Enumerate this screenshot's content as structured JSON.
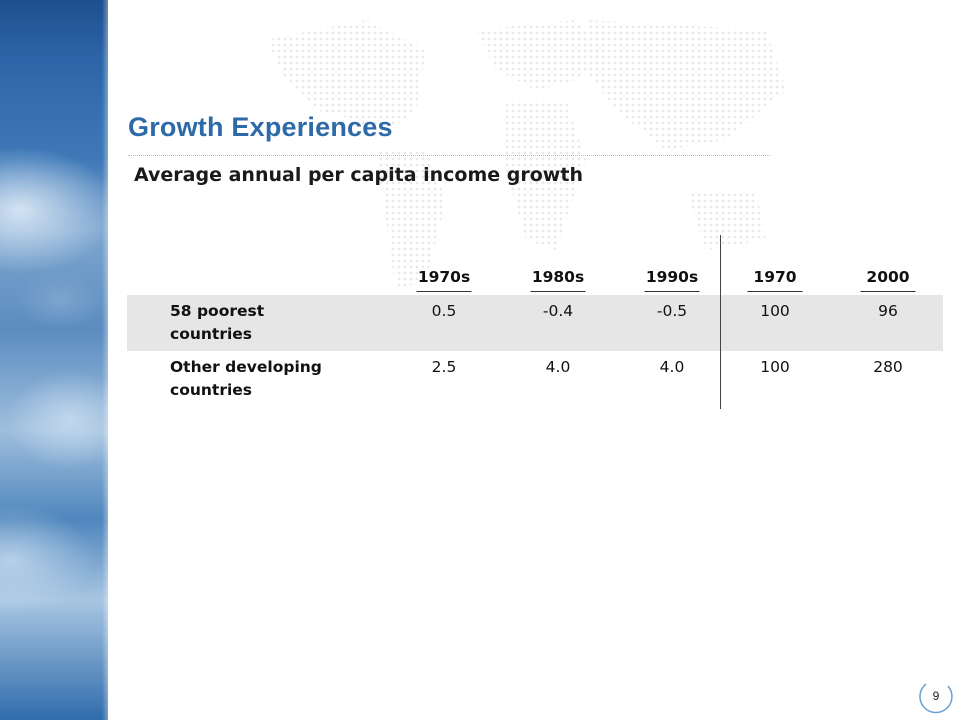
{
  "slide": {
    "title": "Growth Experiences",
    "subtitle": "Average annual per capita income growth",
    "page_number": "9"
  },
  "table": {
    "columns": [
      "1970s",
      "1980s",
      "1990s",
      "1970",
      "2000"
    ],
    "rows": [
      {
        "label_line1": "58 poorest",
        "label_line2": "countries",
        "values": [
          "0.5",
          "-0.4",
          "-0.5",
          "100",
          "96"
        ]
      },
      {
        "label_line1": "Other developing",
        "label_line2": "countries",
        "values": [
          "2.5",
          "4.0",
          "4.0",
          "100",
          "280"
        ]
      }
    ]
  },
  "colors": {
    "title": "#2e6aa8",
    "row_shade": "#e6e6e6",
    "earth_strip": "#2c66a8"
  }
}
